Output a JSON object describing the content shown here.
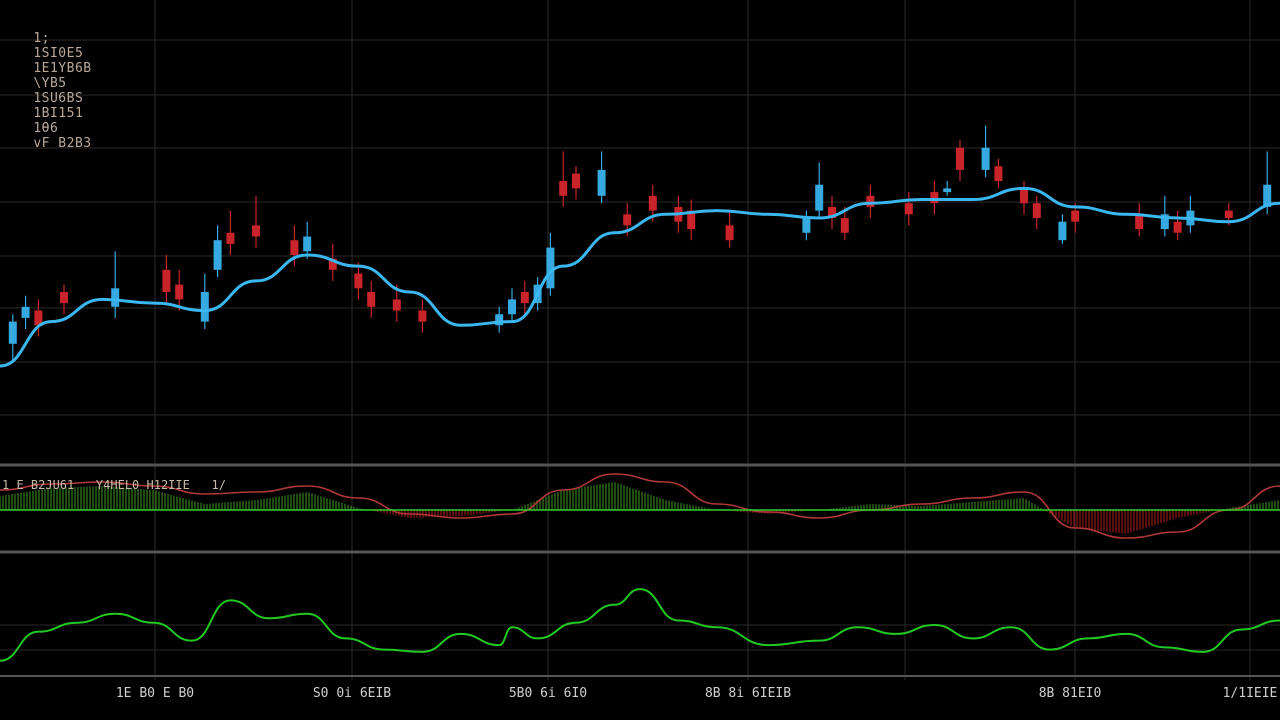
{
  "header": {
    "symbol": "1;",
    "fields": [
      "1SI0E5",
      "1E1YB6B",
      "\\YB5",
      "1SU6BS",
      "1BI151",
      "1Ɵ6",
      "vF B2B3"
    ]
  },
  "indicator_header": "1 E B2JU61   Y4HEL0 H12IIE   1/",
  "x_ticks": [
    "1E B0 E B0",
    "S0 0i 6EIB",
    "5B0 6i 6I0",
    "8B 8i 6IEIB",
    "8B 81EI0",
    "1/1IEIE"
  ],
  "colors": {
    "background": "#000000",
    "grid": "#2a2a2a",
    "separator": "#555555",
    "ma_line": "#3ab7ef",
    "up_candle": "#36a9e1",
    "down_candle": "#c8242a",
    "histogram_pos": "#3a8a22",
    "histogram_neg": "#a51d1d",
    "signal_line": "#b03838",
    "zero_line": "#2fd02f",
    "oscillator_line": "#22c922",
    "text": "#b9a89a"
  },
  "chart_data": [
    {
      "type": "line",
      "panel": "price",
      "grid": true,
      "ylim": [
        0,
        100
      ],
      "series": [
        {
          "role": "moving_average",
          "x": [
            0,
            4,
            8,
            12,
            16,
            20,
            24,
            28,
            32,
            36,
            40,
            44,
            48,
            52,
            56,
            60,
            64,
            68,
            72,
            76,
            80,
            84,
            88,
            92,
            96,
            100
          ],
          "values": [
            20,
            32,
            38,
            37,
            35,
            43,
            50,
            47,
            40,
            31,
            32,
            47,
            56,
            61,
            62,
            61,
            60,
            64,
            65,
            65,
            68,
            63,
            61,
            60,
            59,
            64
          ]
        },
        {
          "role": "candles_up",
          "x": [
            1,
            2,
            9,
            16,
            17,
            24,
            39,
            40,
            42,
            43,
            47,
            63,
            64,
            74,
            77,
            83,
            91,
            93,
            99
          ],
          "open": [
            26,
            33,
            36,
            32,
            46,
            51,
            31,
            34,
            37,
            41,
            66,
            56,
            62,
            67,
            73,
            54,
            57,
            58,
            63
          ],
          "close": [
            32,
            36,
            41,
            40,
            54,
            55,
            34,
            38,
            42,
            52,
            73,
            60,
            69,
            68,
            79,
            59,
            61,
            62,
            69
          ],
          "high": [
            34,
            39,
            51,
            45,
            58,
            59,
            36,
            41,
            44,
            56,
            78,
            62,
            75,
            70,
            85,
            61,
            66,
            66,
            78
          ],
          "low": [
            21,
            30,
            33,
            30,
            44,
            49,
            29,
            32,
            35,
            39,
            64,
            54,
            60,
            66,
            71,
            53,
            55,
            56,
            61
          ]
        },
        {
          "role": "candles_down",
          "x": [
            3,
            5,
            13,
            14,
            18,
            20,
            23,
            26,
            28,
            29,
            31,
            33,
            41,
            44,
            45,
            49,
            51,
            53,
            54,
            57,
            65,
            66,
            68,
            71,
            73,
            75,
            78,
            80,
            81,
            84,
            89,
            92,
            96
          ],
          "open": [
            35,
            40,
            46,
            42,
            56,
            58,
            54,
            49,
            45,
            40,
            38,
            35,
            40,
            70,
            72,
            61,
            66,
            63,
            62,
            58,
            63,
            60,
            66,
            64,
            67,
            79,
            74,
            68,
            64,
            62,
            61,
            59,
            62
          ],
          "close": [
            31,
            37,
            40,
            38,
            53,
            55,
            50,
            46,
            41,
            36,
            35,
            32,
            37,
            66,
            68,
            58,
            62,
            59,
            57,
            54,
            60,
            56,
            63,
            61,
            64,
            73,
            70,
            64,
            60,
            59,
            57,
            56,
            60
          ],
          "high": [
            38,
            42,
            50,
            46,
            62,
            66,
            58,
            53,
            48,
            43,
            42,
            38,
            43,
            78,
            74,
            64,
            69,
            66,
            65,
            62,
            66,
            63,
            69,
            67,
            70,
            81,
            76,
            70,
            66,
            64,
            64,
            62,
            64
          ],
          "low": [
            28,
            34,
            37,
            35,
            50,
            52,
            47,
            43,
            38,
            33,
            32,
            29,
            34,
            63,
            65,
            55,
            59,
            56,
            54,
            52,
            57,
            54,
            60,
            58,
            61,
            70,
            68,
            61,
            57,
            56,
            55,
            54,
            58
          ]
        }
      ]
    },
    {
      "type": "area",
      "panel": "macd",
      "grid": true,
      "ylim": [
        -40,
        40
      ],
      "series": [
        {
          "role": "histogram",
          "x": [
            0,
            4,
            8,
            12,
            16,
            20,
            24,
            28,
            32,
            36,
            40,
            44,
            48,
            52,
            56,
            60,
            64,
            68,
            72,
            76,
            80,
            84,
            88,
            92,
            96,
            100
          ],
          "values": [
            14,
            22,
            24,
            20,
            6,
            10,
            18,
            2,
            -8,
            -6,
            0,
            20,
            28,
            10,
            0,
            -4,
            0,
            6,
            4,
            8,
            12,
            -18,
            -24,
            -8,
            2,
            10
          ]
        },
        {
          "role": "signal_line",
          "x": [
            0,
            4,
            8,
            12,
            16,
            20,
            24,
            28,
            32,
            36,
            40,
            44,
            48,
            52,
            56,
            60,
            64,
            68,
            72,
            76,
            80,
            84,
            88,
            92,
            96,
            100
          ],
          "values": [
            20,
            26,
            28,
            24,
            16,
            18,
            24,
            12,
            -4,
            -8,
            -4,
            20,
            36,
            28,
            6,
            -2,
            -8,
            0,
            6,
            12,
            18,
            -18,
            -28,
            -22,
            0,
            24
          ]
        }
      ]
    },
    {
      "type": "line",
      "panel": "oscillator",
      "grid": true,
      "ylim": [
        0,
        100
      ],
      "series": [
        {
          "role": "oscillator",
          "x": [
            0,
            3,
            6,
            9,
            12,
            15,
            18,
            21,
            24,
            27,
            30,
            33,
            36,
            39,
            40,
            42,
            45,
            48,
            50,
            53,
            56,
            60,
            64,
            67,
            70,
            73,
            76,
            79,
            82,
            85,
            88,
            91,
            94,
            97,
            100
          ],
          "values": [
            10,
            36,
            44,
            52,
            44,
            28,
            64,
            48,
            52,
            30,
            20,
            18,
            34,
            24,
            40,
            30,
            44,
            60,
            74,
            46,
            40,
            24,
            28,
            40,
            34,
            42,
            30,
            40,
            20,
            30,
            34,
            22,
            18,
            38,
            46
          ]
        }
      ]
    }
  ]
}
